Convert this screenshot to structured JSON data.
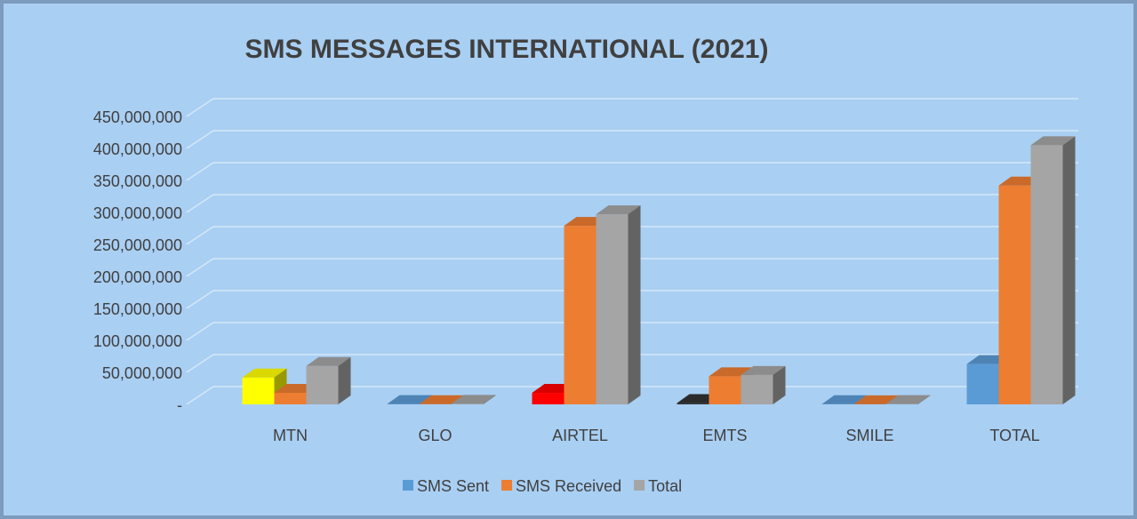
{
  "chart_data": {
    "type": "bar3d",
    "title": "SMS MESSAGES INTERNATIONAL (2021)",
    "categories": [
      "MTN",
      "GLO",
      "AIRTEL",
      "EMTS",
      "SMILE",
      "TOTAL"
    ],
    "series": [
      {
        "name": "SMS Sent",
        "color": "#5b9bd5",
        "colors": [
          "#ffff00",
          "#5b9bd5",
          "#ff0000",
          "#333333",
          "#5b9bd5",
          "#5b9bd5"
        ],
        "values": [
          42000000,
          500000,
          18000000,
          2000000,
          300000,
          63000000
        ]
      },
      {
        "name": "SMS Received",
        "color": "#ed7d31",
        "values": [
          18000000,
          300000,
          279000000,
          44000000,
          200000,
          342000000
        ]
      },
      {
        "name": "Total",
        "color": "#a5a5a5",
        "values": [
          60000000,
          800000,
          297000000,
          46000000,
          500000,
          405000000
        ]
      }
    ],
    "ylim": [
      0,
      450000000
    ],
    "yticks": [
      {
        "value": 0,
        "label": "-"
      },
      {
        "value": 50000000,
        "label": "50,000,000"
      },
      {
        "value": 100000000,
        "label": "100,000,000"
      },
      {
        "value": 150000000,
        "label": "150,000,000"
      },
      {
        "value": 200000000,
        "label": "200,000,000"
      },
      {
        "value": 250000000,
        "label": "250,000,000"
      },
      {
        "value": 300000000,
        "label": "300,000,000"
      },
      {
        "value": 350000000,
        "label": "350,000,000"
      },
      {
        "value": 400000000,
        "label": "400,000,000"
      },
      {
        "value": 450000000,
        "label": "450,000,000"
      }
    ],
    "grid": true,
    "legend": "bottom"
  }
}
